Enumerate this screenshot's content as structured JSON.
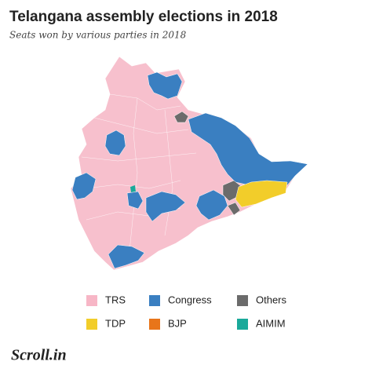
{
  "header": {
    "title": "Telangana assembly elections in 2018",
    "subtitle": "Seats won by various parties in 2018"
  },
  "legend": [
    {
      "label": "TRS",
      "color": "#f7b6c6"
    },
    {
      "label": "Congress",
      "color": "#3a7fc1"
    },
    {
      "label": "Others",
      "color": "#6b6b6b"
    },
    {
      "label": "TDP",
      "color": "#f2cd2a"
    },
    {
      "label": "BJP",
      "color": "#e8751a"
    },
    {
      "label": "AIMIM",
      "color": "#1aa99a"
    }
  ],
  "footer": {
    "logo": "Scroll.in"
  }
}
